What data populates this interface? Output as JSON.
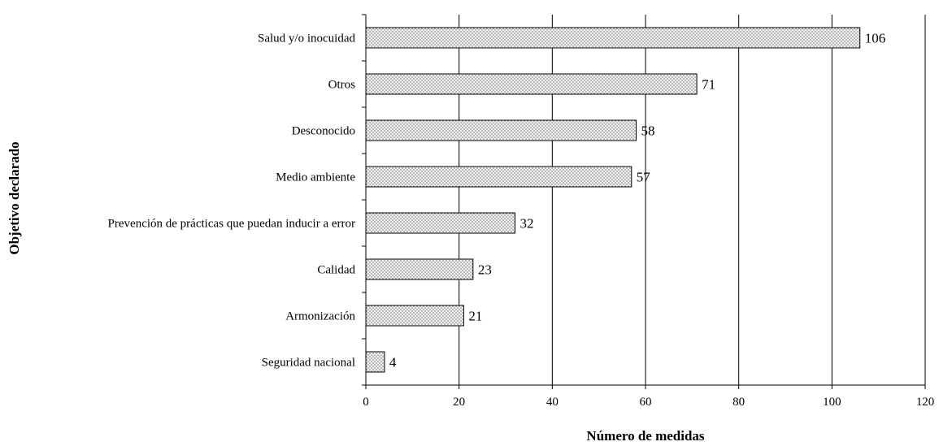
{
  "chart_data": {
    "type": "bar",
    "orientation": "horizontal",
    "categories": [
      "Salud y/o inocuidad",
      "Otros",
      "Desconocido",
      "Medio ambiente",
      "Prevención de prácticas que puedan inducir a error",
      "Calidad",
      "Armonización",
      "Seguridad nacional"
    ],
    "values": [
      106,
      71,
      58,
      57,
      32,
      23,
      21,
      4
    ],
    "xlabel": "Número de medidas",
    "ylabel": "Objetivo declarado",
    "xlim": [
      0,
      120
    ],
    "xticks": [
      0,
      20,
      40,
      60,
      80,
      100,
      120
    ],
    "grid": "vertical",
    "bar_fill": "dotted-gray",
    "data_labels": true
  }
}
